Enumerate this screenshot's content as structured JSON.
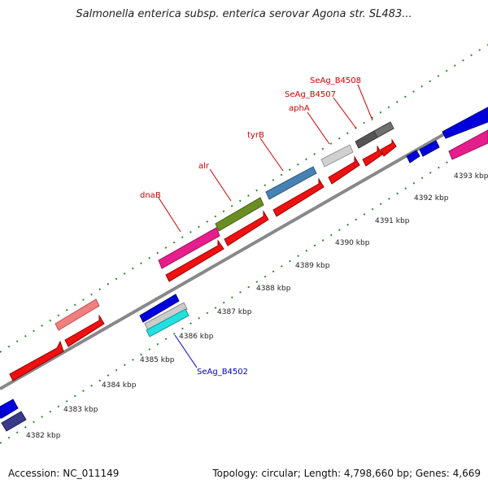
{
  "title": "Salmonella enterica subsp. enterica serovar Agona str. SL483...",
  "footer": {
    "accession": "Accession: NC_011149",
    "summary": "Topology: circular; Length: 4,798,660 bp; Genes: 4,669"
  },
  "colors": {
    "backbone": "#8a8a8a",
    "ticks": "#2e8b2e",
    "label_red": "#cc0000",
    "label_blue": "#0000cc"
  },
  "scale_labels": [
    "4382 kbp",
    "4383 kbp",
    "4384 kbp",
    "4385 kbp",
    "4386 kbp",
    "4387 kbp",
    "4388 kbp",
    "4389 kbp",
    "4390 kbp",
    "4391 kbp",
    "4392 kbp",
    "4393 kbp"
  ],
  "gene_labels": [
    {
      "name": "dnaB",
      "color": "red"
    },
    {
      "name": "alr",
      "color": "red"
    },
    {
      "name": "tyrB",
      "color": "red"
    },
    {
      "name": "aphA",
      "color": "red"
    },
    {
      "name": "SeAg_B4507",
      "color": "red"
    },
    {
      "name": "SeAg_B4508",
      "color": "red"
    },
    {
      "name": "SeAg_B4502",
      "color": "blue"
    }
  ]
}
